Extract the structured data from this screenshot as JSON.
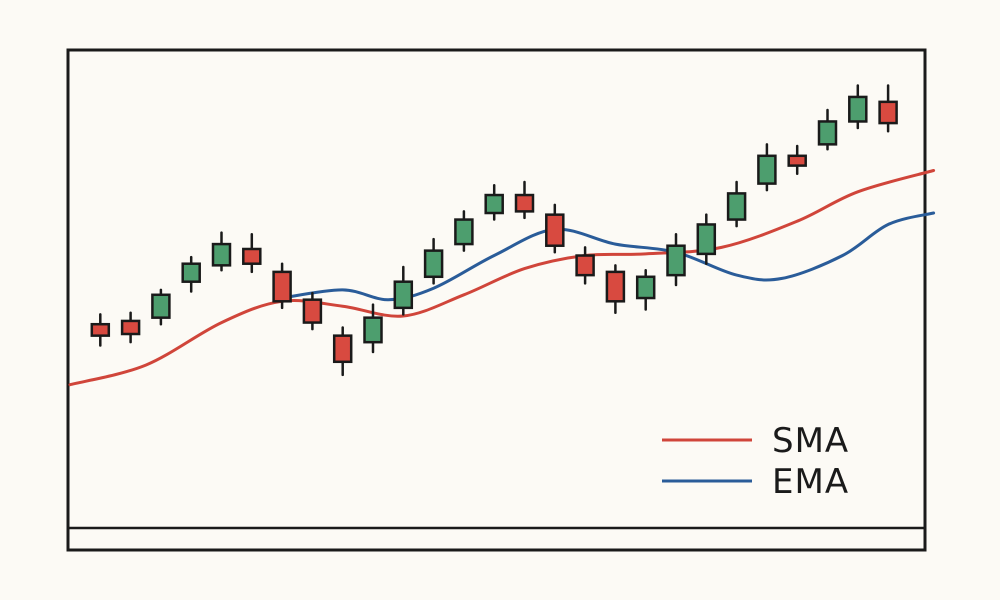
{
  "chart_data": {
    "type": "candlestick",
    "title": "",
    "xlabel": "",
    "ylabel": "",
    "x": [
      1,
      2,
      3,
      4,
      5,
      6,
      7,
      8,
      9,
      10,
      11,
      12,
      13,
      14,
      15,
      16,
      17,
      18,
      19,
      20,
      21,
      22,
      23,
      24,
      25,
      26,
      27,
      28
    ],
    "ylim": [
      0,
      100
    ],
    "grid": false,
    "candles": [
      {
        "x": 1,
        "open": 40.0,
        "close": 36.5,
        "high": 43.0,
        "low": 33.5,
        "direction": "down"
      },
      {
        "x": 2,
        "open": 41.0,
        "close": 37.0,
        "high": 43.5,
        "low": 34.5,
        "direction": "down"
      },
      {
        "x": 3,
        "open": 42.0,
        "close": 49.0,
        "high": 50.5,
        "low": 40.0,
        "direction": "up"
      },
      {
        "x": 4,
        "open": 53.0,
        "close": 58.5,
        "high": 60.5,
        "low": 50.0,
        "direction": "up"
      },
      {
        "x": 5,
        "open": 58.0,
        "close": 64.5,
        "high": 68.0,
        "low": 56.5,
        "direction": "up"
      },
      {
        "x": 6,
        "open": 63.0,
        "close": 58.5,
        "high": 67.5,
        "low": 56.0,
        "direction": "down"
      },
      {
        "x": 7,
        "open": 56.0,
        "close": 47.0,
        "high": 58.5,
        "low": 45.0,
        "direction": "down"
      },
      {
        "x": 8,
        "open": 47.5,
        "close": 40.5,
        "high": 49.5,
        "low": 38.5,
        "direction": "down"
      },
      {
        "x": 9,
        "open": 36.5,
        "close": 28.5,
        "high": 39.0,
        "low": 24.5,
        "direction": "down"
      },
      {
        "x": 10,
        "open": 34.5,
        "close": 42.0,
        "high": 46.0,
        "low": 31.5,
        "direction": "up"
      },
      {
        "x": 11,
        "open": 45.0,
        "close": 53.0,
        "high": 57.5,
        "low": 43.0,
        "direction": "up"
      },
      {
        "x": 12,
        "open": 54.5,
        "close": 62.5,
        "high": 66.0,
        "low": 52.5,
        "direction": "up"
      },
      {
        "x": 13,
        "open": 64.5,
        "close": 72.0,
        "high": 74.5,
        "low": 62.5,
        "direction": "up"
      },
      {
        "x": 14,
        "open": 74.0,
        "close": 79.5,
        "high": 82.5,
        "low": 72.0,
        "direction": "up"
      },
      {
        "x": 15,
        "open": 79.5,
        "close": 74.5,
        "high": 83.5,
        "low": 72.5,
        "direction": "down"
      },
      {
        "x": 16,
        "open": 73.5,
        "close": 64.0,
        "high": 76.5,
        "low": 62.0,
        "direction": "down"
      },
      {
        "x": 17,
        "open": 61.0,
        "close": 55.0,
        "high": 63.5,
        "low": 52.5,
        "direction": "down"
      },
      {
        "x": 18,
        "open": 56.0,
        "close": 47.0,
        "high": 58.0,
        "low": 43.5,
        "direction": "down"
      },
      {
        "x": 19,
        "open": 48.0,
        "close": 54.5,
        "high": 56.5,
        "low": 44.5,
        "direction": "up"
      },
      {
        "x": 20,
        "open": 55.0,
        "close": 64.0,
        "high": 67.5,
        "low": 52.0,
        "direction": "up"
      },
      {
        "x": 21,
        "open": 61.5,
        "close": 70.5,
        "high": 73.5,
        "low": 58.5,
        "direction": "up"
      },
      {
        "x": 22,
        "open": 72.0,
        "close": 80.0,
        "high": 83.5,
        "low": 70.0,
        "direction": "up"
      },
      {
        "x": 23,
        "open": 83.0,
        "close": 91.5,
        "high": 95.0,
        "low": 81.0,
        "direction": "up"
      },
      {
        "x": 24,
        "open": 91.5,
        "close": 88.5,
        "high": 94.5,
        "low": 86.0,
        "direction": "down"
      },
      {
        "x": 25,
        "open": 95.0,
        "close": 102.0,
        "high": 105.5,
        "low": 93.5,
        "direction": "up"
      },
      {
        "x": 26,
        "open": 102.0,
        "close": 109.5,
        "high": 113.0,
        "low": 100.0,
        "direction": "up"
      },
      {
        "x": 27,
        "open": 108.0,
        "close": 101.5,
        "high": 113.0,
        "low": 99.0,
        "direction": "down"
      }
    ],
    "series": [
      {
        "name": "SMA",
        "color": "#d0453a",
        "points": [
          [
            0.0,
            21.5
          ],
          [
            2.5,
            27.5
          ],
          [
            5.0,
            40.5
          ],
          [
            7.0,
            47.0
          ],
          [
            9.0,
            45.5
          ],
          [
            11.0,
            42.5
          ],
          [
            13.0,
            49.0
          ],
          [
            15.0,
            57.0
          ],
          [
            17.0,
            61.0
          ],
          [
            19.0,
            61.5
          ],
          [
            21.5,
            63.5
          ],
          [
            24.0,
            71.5
          ],
          [
            26.0,
            80.5
          ],
          [
            28.5,
            87.0
          ]
        ]
      },
      {
        "name": "EMA",
        "color": "#2a5c99",
        "points": [
          [
            7.0,
            48.0
          ],
          [
            9.0,
            50.5
          ],
          [
            10.5,
            47.5
          ],
          [
            12.0,
            51.0
          ],
          [
            14.0,
            61.0
          ],
          [
            16.0,
            69.0
          ],
          [
            18.0,
            64.5
          ],
          [
            20.0,
            62.0
          ],
          [
            22.0,
            55.0
          ],
          [
            23.5,
            54.0
          ],
          [
            25.5,
            61.0
          ],
          [
            27.0,
            70.5
          ],
          [
            28.5,
            74.0
          ]
        ]
      }
    ],
    "colors": {
      "up": "#4d9e6e",
      "down": "#d84a40",
      "outline": "#1a1a1a",
      "background": "#fcfaf5"
    },
    "legend": {
      "position": "bottom-right",
      "items": [
        {
          "label": "SMA",
          "color": "#d0453a"
        },
        {
          "label": "EMA",
          "color": "#2a5c99"
        }
      ]
    }
  }
}
